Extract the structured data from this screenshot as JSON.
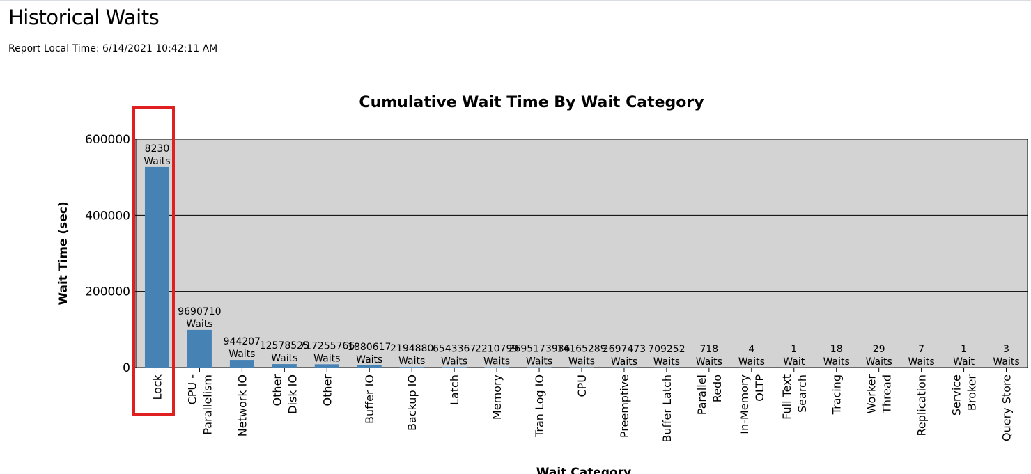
{
  "page": {
    "title": "Historical Waits",
    "report_time": "Report Local Time: 6/14/2021 10:42:11 AM"
  },
  "colors": {
    "bar": "#4682b4",
    "plot_bg": "#d3d3d3",
    "highlight": "#e02020"
  },
  "highlighted_category": "Lock",
  "chart_data": {
    "type": "bar",
    "title": "Cumulative Wait Time By Wait Category",
    "ylabel": "Wait Time (sec)",
    "xlabel": "Wait Category",
    "ylim": [
      0,
      600000
    ],
    "yticks": [
      "0",
      "200000",
      "400000",
      "600000"
    ],
    "grid": true,
    "categories": [
      {
        "label": [
          "Lock"
        ],
        "value": 527000,
        "dl": [
          "8230",
          "Waits"
        ]
      },
      {
        "label": [
          "CPU -",
          "Parallelism"
        ],
        "value": 99000,
        "dl": [
          "9690710",
          "Waits"
        ]
      },
      {
        "label": [
          "Network IO"
        ],
        "value": 20000,
        "dl": [
          "944207",
          "Waits"
        ]
      },
      {
        "label": [
          "Other",
          "Disk IO"
        ],
        "value": 9000,
        "dl": [
          "12578525",
          "Waits"
        ]
      },
      {
        "label": [
          "Other"
        ],
        "value": 8500,
        "dl": [
          "717255766",
          "Waits"
        ]
      },
      {
        "label": [
          "Buffer IO"
        ],
        "value": 5500,
        "dl": [
          "1880617",
          "Waits"
        ]
      },
      {
        "label": [
          "Backup IO"
        ],
        "value": 1500,
        "dl": [
          "2194880",
          "Waits"
        ]
      },
      {
        "label": [
          "Latch"
        ],
        "value": 1200,
        "dl": [
          "6543367",
          "Waits"
        ]
      },
      {
        "label": [
          "Memory"
        ],
        "value": 900,
        "dl": [
          "2210799",
          "Waits"
        ]
      },
      {
        "label": [
          "Tran Log IO"
        ],
        "value": 700,
        "dl": [
          "2695173936",
          "Waits"
        ]
      },
      {
        "label": [
          "CPU"
        ],
        "value": 500,
        "dl": [
          "14165289",
          "Waits"
        ]
      },
      {
        "label": [
          "Preemptive"
        ],
        "value": 400,
        "dl": [
          "2697473",
          "Waits"
        ]
      },
      {
        "label": [
          "Buffer Latch"
        ],
        "value": 300,
        "dl": [
          "709252",
          "Waits"
        ]
      },
      {
        "label": [
          "Parallel",
          "Redo"
        ],
        "value": 200,
        "dl": [
          "718",
          "Waits"
        ]
      },
      {
        "label": [
          "In-Memory",
          "OLTP"
        ],
        "value": 150,
        "dl": [
          "4",
          "Waits"
        ]
      },
      {
        "label": [
          "Full Text",
          "Search"
        ],
        "value": 100,
        "dl": [
          "1",
          "Wait"
        ]
      },
      {
        "label": [
          "Tracing"
        ],
        "value": 80,
        "dl": [
          "18",
          "Waits"
        ]
      },
      {
        "label": [
          "Worker",
          "Thread"
        ],
        "value": 60,
        "dl": [
          "29",
          "Waits"
        ]
      },
      {
        "label": [
          "Replication"
        ],
        "value": 40,
        "dl": [
          "7",
          "Waits"
        ]
      },
      {
        "label": [
          "Service",
          "Broker"
        ],
        "value": 20,
        "dl": [
          "1",
          "Wait"
        ]
      },
      {
        "label": [
          "Query Store"
        ],
        "value": 10,
        "dl": [
          "3",
          "Waits"
        ]
      }
    ]
  }
}
